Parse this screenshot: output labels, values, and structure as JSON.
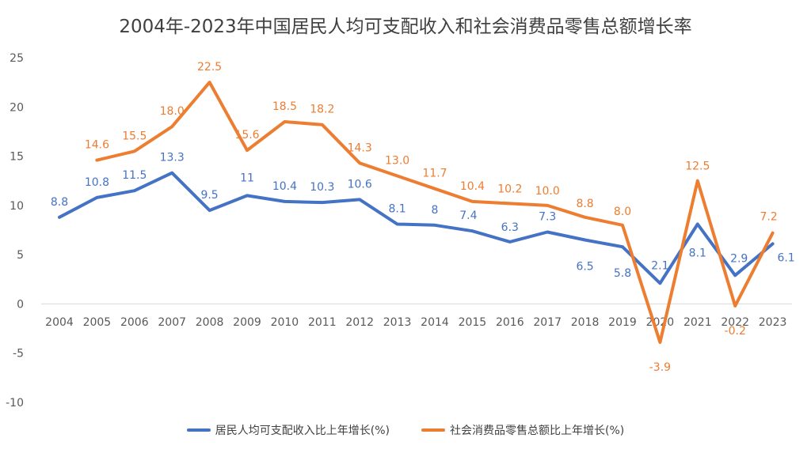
{
  "colors": {
    "series1": "#4472C4",
    "series2": "#ED7D31",
    "axis": "#D9D9D9",
    "text": "#595959"
  },
  "chart_data": {
    "type": "line",
    "title": "2004年-2023年中国居民人均可支配收入和社会消费品零售总额增长率",
    "xlabel": "",
    "ylabel": "",
    "ylim": [
      -10,
      25
    ],
    "yticks": [
      "25",
      "20",
      "15",
      "10",
      "5",
      "0",
      "-5",
      "-10"
    ],
    "grid": false,
    "legend_position": "bottom",
    "categories": [
      "2004",
      "2005",
      "2006",
      "2007",
      "2008",
      "2009",
      "2010",
      "2011",
      "2012",
      "2013",
      "2014",
      "2015",
      "2016",
      "2017",
      "2018",
      "2019",
      "2020",
      "2021",
      "2022",
      "2023"
    ],
    "series": [
      {
        "name": "居民人均可支配收入比上年增长(%)",
        "values": [
          8.8,
          10.8,
          11.5,
          13.3,
          9.5,
          11,
          10.4,
          10.3,
          10.6,
          8.1,
          8,
          7.4,
          6.3,
          7.3,
          6.5,
          5.8,
          2.1,
          8.1,
          2.9,
          6.1
        ],
        "labels": [
          "8.8",
          "10.8",
          "11.5",
          "13.3",
          "9.5",
          "11",
          "10.4",
          "10.3",
          "10.6",
          "8.1",
          "8",
          "7.4",
          "6.3",
          "7.3",
          "6.5",
          "5.8",
          "2.1",
          "8.1",
          "2.9",
          "6.1"
        ]
      },
      {
        "name": "社会消费品零售总额比上年增长(%)",
        "values": [
          null,
          14.6,
          15.5,
          18.0,
          22.5,
          15.6,
          18.5,
          18.2,
          14.3,
          13.0,
          11.7,
          10.4,
          10.2,
          10.0,
          8.8,
          8.0,
          -3.9,
          12.5,
          -0.2,
          7.2
        ],
        "labels": [
          "",
          "14.6",
          "15.5",
          "18.0",
          "22.5",
          "15.6",
          "18.5",
          "18.2",
          "14.3",
          "13.0",
          "11.7",
          "10.4",
          "10.2",
          "10.0",
          "8.8",
          "8.0",
          "-3.9",
          "12.5",
          "-0.2",
          "7.2"
        ]
      }
    ]
  }
}
